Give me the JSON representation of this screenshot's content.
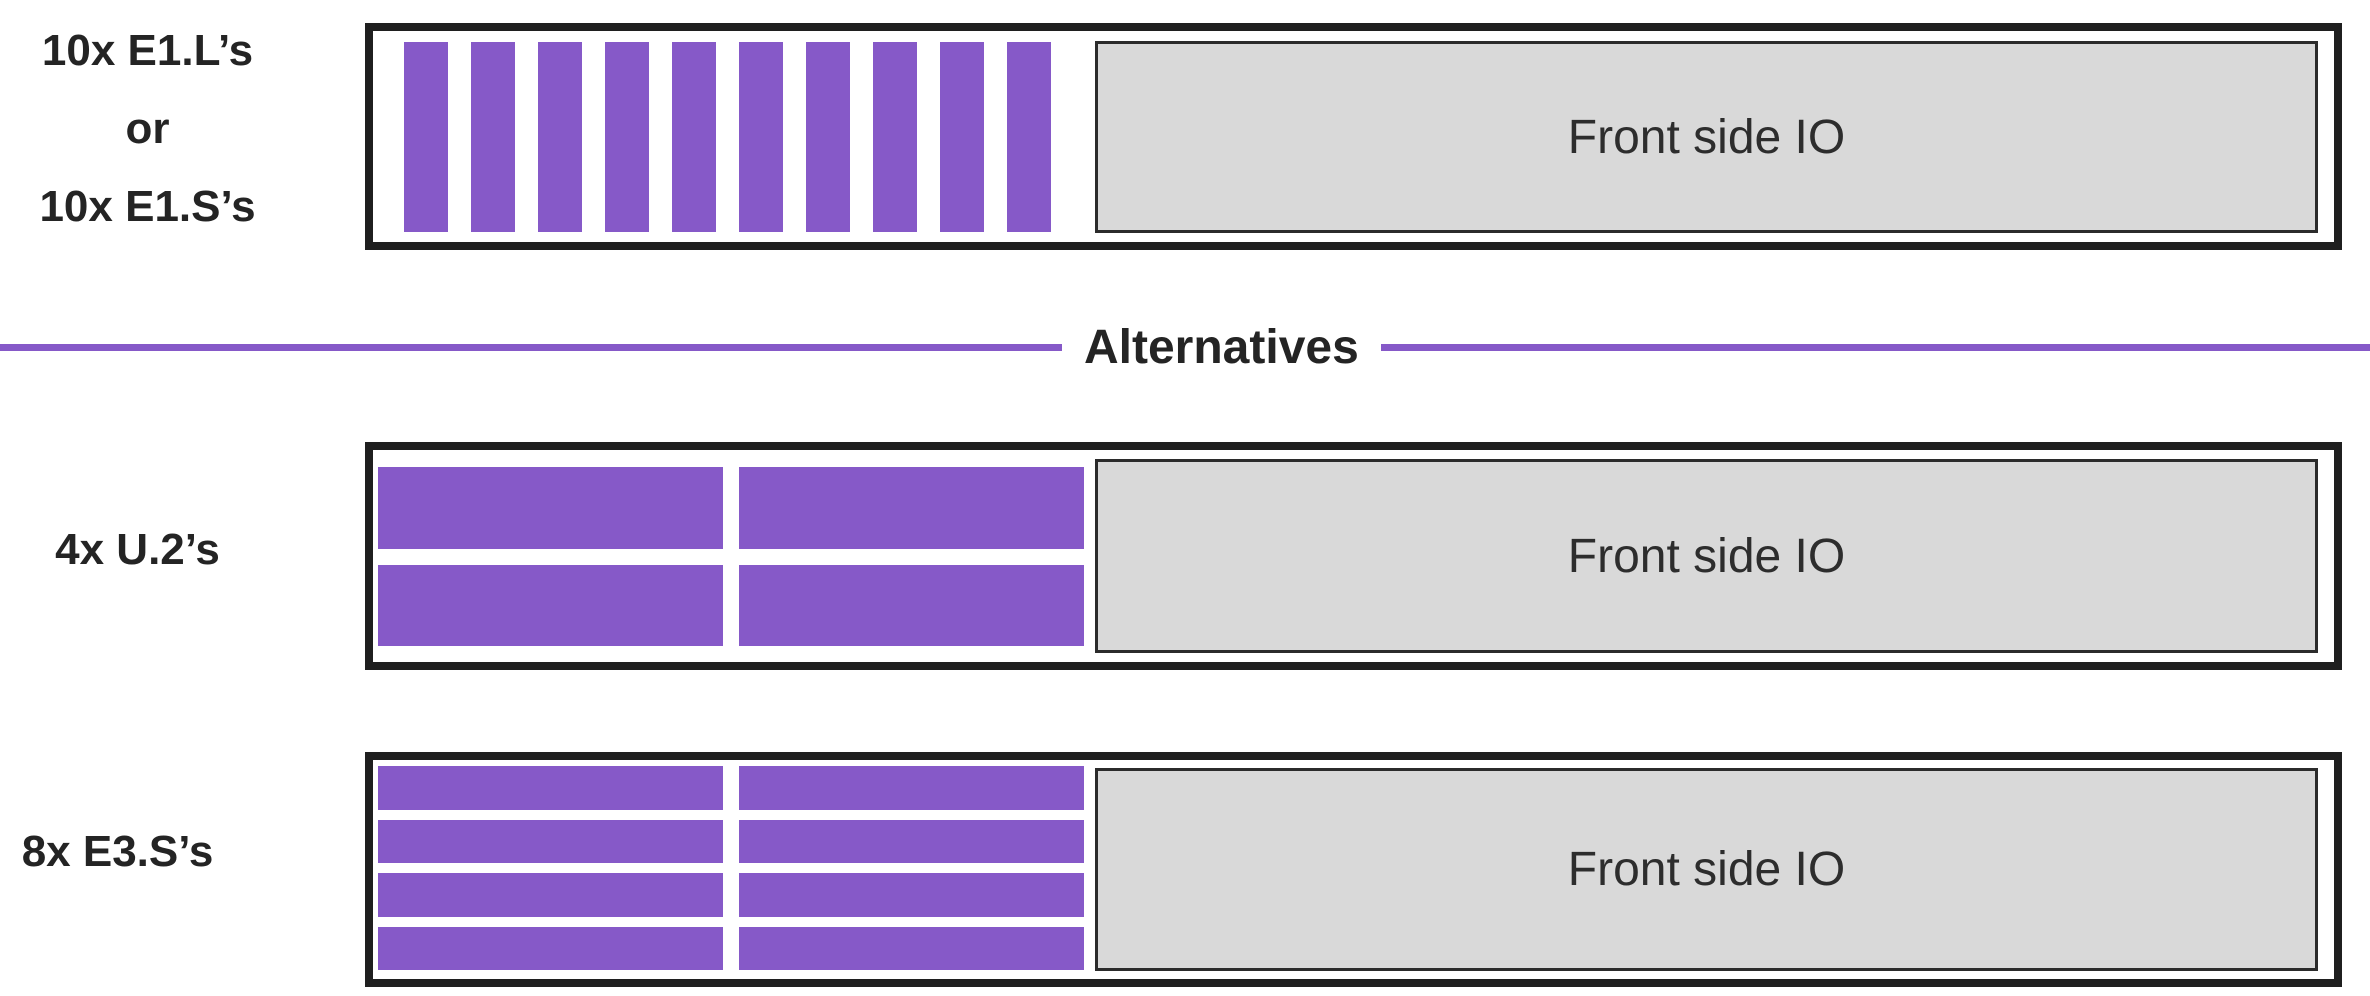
{
  "colors": {
    "purple": "#8659C8",
    "divider": "#8659C8",
    "chassis_border": "#1F1F1F",
    "io_fill": "#D9D9D9",
    "io_border": "#2B2B2B",
    "io_text": "#2D2D2D",
    "label_text": "#242424"
  },
  "divider": {
    "label": "Alternatives"
  },
  "rows": [
    {
      "id": "e1",
      "label_lines": [
        "10x E1.L’s",
        "or",
        "10x E1.S’s"
      ],
      "drive_layout": {
        "type": "vertical-bays",
        "count": 10,
        "cols": 10,
        "rows": 1
      },
      "io_label": "Front side IO"
    },
    {
      "id": "u2",
      "label_lines": [
        "4x U.2’s"
      ],
      "drive_layout": {
        "type": "horizontal-bays",
        "count": 4,
        "cols": 2,
        "rows": 2
      },
      "io_label": "Front side IO"
    },
    {
      "id": "e3",
      "label_lines": [
        "8x E3.S’s"
      ],
      "drive_layout": {
        "type": "horizontal-bays",
        "count": 8,
        "cols": 2,
        "rows": 4
      },
      "io_label": "Front side IO"
    }
  ]
}
